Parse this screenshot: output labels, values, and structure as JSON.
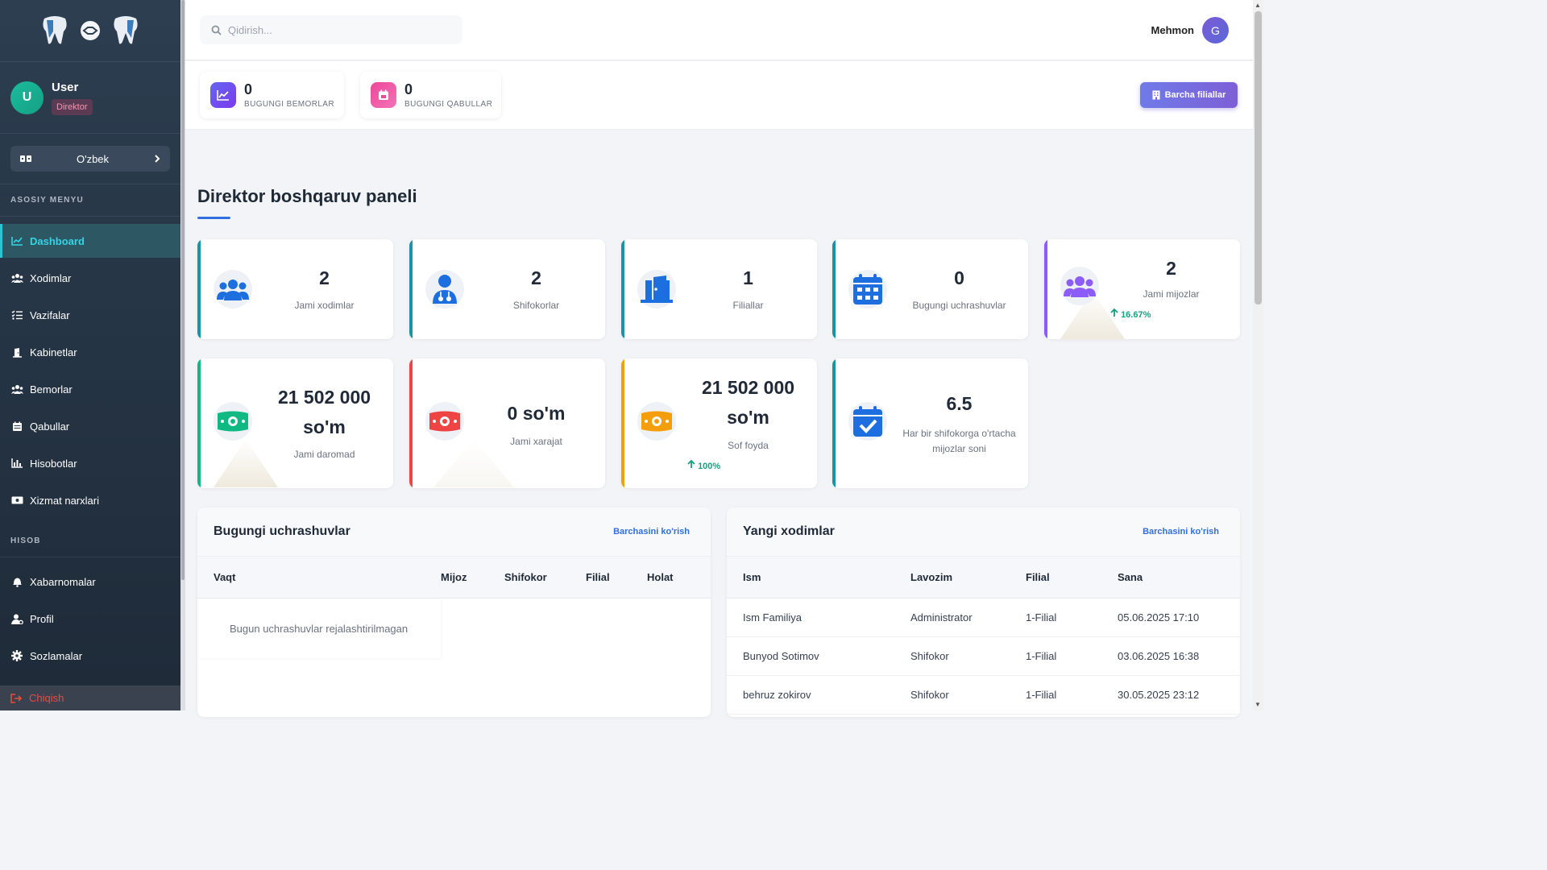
{
  "sidebar": {
    "user": {
      "initial": "U",
      "name": "User",
      "role": "Direktor"
    },
    "language": {
      "label": "O'zbek"
    },
    "main_section": "ASOSIY MENYU",
    "menu": [
      {
        "label": "Dashboard",
        "icon": "chart-line-icon",
        "active": true
      },
      {
        "label": "Xodimlar",
        "icon": "users-icon"
      },
      {
        "label": "Vazifalar",
        "icon": "tasks-list-icon"
      },
      {
        "label": "Kabinetlar",
        "icon": "door-icon"
      },
      {
        "label": "Bemorlar",
        "icon": "patients-icon"
      },
      {
        "label": "Qabullar",
        "icon": "calendar-icon"
      },
      {
        "label": "Hisobotlar",
        "icon": "bar-chart-icon"
      },
      {
        "label": "Xizmat narxlari",
        "icon": "money-icon"
      }
    ],
    "account_section": "HISOB",
    "account_menu": [
      {
        "label": "Xabarnomalar",
        "icon": "bell-icon"
      },
      {
        "label": "Profil",
        "icon": "user-cog-icon"
      },
      {
        "label": "Sozlamalar",
        "icon": "gear-icon"
      }
    ],
    "logout": "Chiqish"
  },
  "topbar": {
    "search_placeholder": "Qidirish...",
    "guest_name": "Mehmon",
    "guest_initial": "G"
  },
  "stats_strip": {
    "patients_today": {
      "value": "0",
      "label": "BUGUNGI BEMORLAR"
    },
    "appointments_today": {
      "value": "0",
      "label": "BUGUNGI QABULLAR"
    },
    "branches_button": "Barcha filiallar"
  },
  "page_title": "Direktor boshqaruv paneli",
  "cards": [
    {
      "value": "2",
      "label": "Jami xodimlar",
      "color": "#1595a5"
    },
    {
      "value": "2",
      "label": "Shifokorlar",
      "color": "#1595a5"
    },
    {
      "value": "1",
      "label": "Filiallar",
      "color": "#1595a5"
    },
    {
      "value": "0",
      "label": "Bugungi uchrashuvlar",
      "color": "#1595a5"
    },
    {
      "value": "2",
      "label": "Jami mijozlar",
      "trend": "16.67%",
      "color": "#8b5cf6"
    },
    {
      "value_line1": "21 502 000",
      "value_line2": "so'm",
      "label": "Jami daromad",
      "color": "#10b981"
    },
    {
      "value": "0 so'm",
      "label": "Jami xarajat",
      "color": "#ef4444"
    },
    {
      "value_line1": "21 502 000",
      "value_line2": "so'm",
      "label": "Sof foyda",
      "trend": "100%",
      "color": "#f59e0b"
    },
    {
      "value": "6.5",
      "label_line1": "Har bir shifokorga o'rtacha",
      "label_line2": "mijozlar soni",
      "color": "#1595a5"
    }
  ],
  "appointments_panel": {
    "title": "Bugungi uchrashuvlar",
    "link": "Barchasini ko'rish",
    "columns": [
      "Vaqt",
      "Mijoz",
      "Shifokor",
      "Filial",
      "Holat"
    ],
    "empty": "Bugun uchrashuvlar rejalashtirilmagan"
  },
  "staff_panel": {
    "title": "Yangi xodimlar",
    "link": "Barchasini ko'rish",
    "columns": [
      "Ism",
      "Lavozim",
      "Filial",
      "Sana"
    ],
    "rows": [
      [
        "Ism Familiya",
        "Administrator",
        "1-Filial",
        "05.06.2025 17:10"
      ],
      [
        "Bunyod Sotimov",
        "Shifokor",
        "1-Filial",
        "03.06.2025 16:38"
      ],
      [
        "behruz zokirov",
        "Shifokor",
        "1-Filial",
        "30.05.2025 23:12"
      ]
    ]
  }
}
